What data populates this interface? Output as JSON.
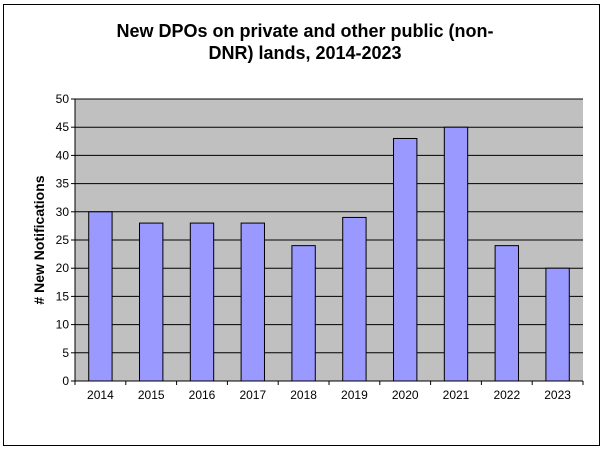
{
  "chart_data": {
    "type": "bar",
    "title": "New DPOs on private and other public (non-DNR) lands, 2014-2023",
    "title_lines": [
      "New DPOs on private and other public (non-",
      "DNR) lands, 2014-2023"
    ],
    "xlabel": "",
    "ylabel": "# New Notifications",
    "categories": [
      "2014",
      "2015",
      "2016",
      "2017",
      "2018",
      "2019",
      "2020",
      "2021",
      "2022",
      "2023"
    ],
    "values": [
      30,
      28,
      28,
      28,
      24,
      29,
      43,
      45,
      24,
      20
    ],
    "ylim": [
      0,
      50
    ],
    "yticks": [
      0,
      5,
      10,
      15,
      20,
      25,
      30,
      35,
      40,
      45,
      50
    ],
    "grid": true,
    "legend": "none",
    "colors": {
      "bar_fill": "#9999ff",
      "bar_stroke": "#000000",
      "plot_background": "#c0c0c0",
      "gridline": "#000000"
    }
  }
}
